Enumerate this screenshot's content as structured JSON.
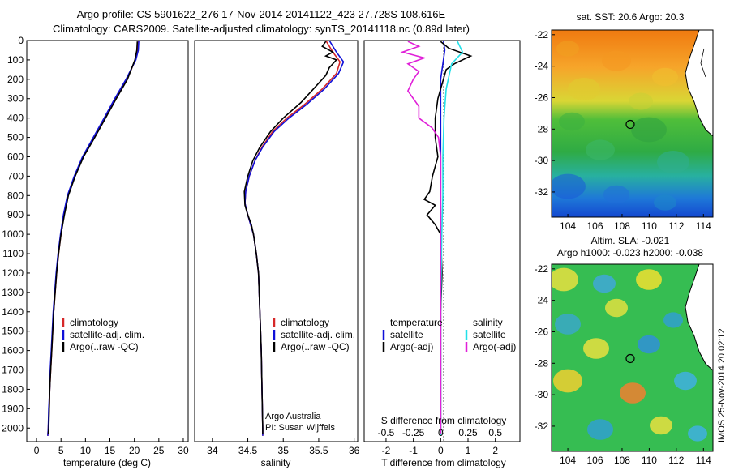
{
  "header": {
    "line1": "Argo profile: CS 5901622_276 17-Nov-2014 20141122_423 27.728S 108.616E",
    "line2": "Climatology: CARS2009. Satellite-adjusted climatology: synTS_20141118.nc (0.89d later)"
  },
  "colors": {
    "climatology": "#d62728",
    "satellite": "#1010d8",
    "argo": "#000000",
    "salinity_satellite": "#22e0e8",
    "salinity_argo": "#e020d8"
  },
  "chart_data": [
    {
      "type": "line",
      "xlabel": "temperature (deg C)",
      "ylabel": "",
      "xlim": [
        -2,
        31
      ],
      "ylim": [
        2070,
        0
      ],
      "xticks": [
        0,
        5,
        10,
        15,
        20,
        25,
        30
      ],
      "yticks": [
        0,
        100,
        200,
        300,
        400,
        500,
        600,
        700,
        800,
        900,
        1000,
        1100,
        1200,
        1300,
        1400,
        1500,
        1600,
        1700,
        1800,
        1900,
        2000
      ],
      "legend": [
        "climatology",
        "satellite-adj. clim.",
        "Argo(..raw -QC)"
      ],
      "legend_position": "lower-middle",
      "series": [
        {
          "name": "climatology",
          "points": [
            [
              20.8,
              0
            ],
            [
              20.7,
              50
            ],
            [
              20.2,
              100
            ],
            [
              18.5,
              200
            ],
            [
              16.2,
              300
            ],
            [
              14.0,
              400
            ],
            [
              11.8,
              500
            ],
            [
              9.5,
              600
            ],
            [
              7.8,
              700
            ],
            [
              6.4,
              800
            ],
            [
              5.6,
              900
            ],
            [
              5.0,
              1000
            ],
            [
              4.5,
              1100
            ],
            [
              4.1,
              1200
            ],
            [
              3.8,
              1300
            ],
            [
              3.5,
              1400
            ],
            [
              3.3,
              1500
            ],
            [
              3.1,
              1600
            ],
            [
              2.9,
              1700
            ],
            [
              2.7,
              1800
            ],
            [
              2.6,
              1900
            ],
            [
              2.4,
              2000
            ],
            [
              2.3,
              2040
            ]
          ]
        },
        {
          "name": "satellite-adj. clim.",
          "points": [
            [
              20.9,
              0
            ],
            [
              20.8,
              50
            ],
            [
              20.3,
              100
            ],
            [
              18.3,
              200
            ],
            [
              16.0,
              300
            ],
            [
              13.8,
              400
            ],
            [
              11.6,
              500
            ],
            [
              9.4,
              600
            ],
            [
              7.7,
              700
            ],
            [
              6.3,
              800
            ],
            [
              5.5,
              900
            ],
            [
              4.9,
              1000
            ],
            [
              4.4,
              1100
            ],
            [
              4.0,
              1200
            ],
            [
              3.7,
              1300
            ],
            [
              3.4,
              1400
            ],
            [
              3.2,
              1500
            ],
            [
              3.0,
              1600
            ],
            [
              2.8,
              1700
            ],
            [
              2.7,
              1800
            ],
            [
              2.5,
              1900
            ],
            [
              2.4,
              2000
            ],
            [
              2.3,
              2040
            ]
          ]
        },
        {
          "name": "Argo(..raw -QC)",
          "points": [
            [
              20.6,
              5
            ],
            [
              20.5,
              50
            ],
            [
              20.1,
              100
            ],
            [
              18.6,
              200
            ],
            [
              16.3,
              300
            ],
            [
              14.1,
              400
            ],
            [
              11.9,
              500
            ],
            [
              9.6,
              600
            ],
            [
              7.9,
              700
            ],
            [
              6.5,
              800
            ],
            [
              5.7,
              900
            ],
            [
              5.0,
              1000
            ],
            [
              4.5,
              1100
            ],
            [
              4.1,
              1200
            ],
            [
              3.8,
              1300
            ],
            [
              3.5,
              1400
            ],
            [
              3.3,
              1500
            ],
            [
              3.1,
              1600
            ],
            [
              2.9,
              1700
            ],
            [
              2.7,
              1800
            ],
            [
              2.6,
              1900
            ],
            [
              2.5,
              2000
            ],
            [
              2.4,
              2030
            ]
          ]
        }
      ]
    },
    {
      "type": "line",
      "xlabel": "salinity",
      "ylabel": "",
      "xlim": [
        33.75,
        36.05
      ],
      "ylim": [
        2070,
        0
      ],
      "xticks": [
        34,
        34.5,
        35,
        35.5,
        36
      ],
      "legend": [
        "climatology",
        "satellite-adj. clim.",
        "Argo(..raw -QC)"
      ],
      "legend_position": "lower-right",
      "annotation": [
        "Argo Australia",
        "PI: Susan Wijffels"
      ],
      "series": [
        {
          "name": "climatology",
          "points": [
            [
              35.6,
              0
            ],
            [
              35.7,
              60
            ],
            [
              35.8,
              110
            ],
            [
              35.75,
              170
            ],
            [
              35.55,
              250
            ],
            [
              35.3,
              330
            ],
            [
              35.05,
              400
            ],
            [
              34.85,
              470
            ],
            [
              34.7,
              550
            ],
            [
              34.6,
              620
            ],
            [
              34.52,
              700
            ],
            [
              34.47,
              780
            ],
            [
              34.46,
              840
            ],
            [
              34.5,
              900
            ],
            [
              34.54,
              950
            ],
            [
              34.58,
              1000
            ],
            [
              34.62,
              1100
            ],
            [
              34.65,
              1200
            ],
            [
              34.67,
              1400
            ],
            [
              34.69,
              1600
            ],
            [
              34.7,
              1800
            ],
            [
              34.71,
              2000
            ],
            [
              34.71,
              2040
            ]
          ]
        },
        {
          "name": "satellite-adj. clim.",
          "points": [
            [
              35.65,
              0
            ],
            [
              35.75,
              60
            ],
            [
              35.85,
              110
            ],
            [
              35.78,
              170
            ],
            [
              35.58,
              250
            ],
            [
              35.33,
              330
            ],
            [
              35.08,
              400
            ],
            [
              34.87,
              470
            ],
            [
              34.71,
              550
            ],
            [
              34.6,
              620
            ],
            [
              34.52,
              700
            ],
            [
              34.47,
              780
            ],
            [
              34.46,
              840
            ],
            [
              34.5,
              900
            ],
            [
              34.54,
              950
            ],
            [
              34.58,
              1000
            ],
            [
              34.62,
              1100
            ],
            [
              34.65,
              1200
            ],
            [
              34.67,
              1400
            ],
            [
              34.69,
              1600
            ],
            [
              34.7,
              1800
            ],
            [
              34.71,
              2000
            ],
            [
              34.71,
              2040
            ]
          ]
        },
        {
          "name": "Argo(..raw -QC)",
          "points": [
            [
              35.6,
              5
            ],
            [
              35.55,
              30
            ],
            [
              35.7,
              60
            ],
            [
              35.6,
              80
            ],
            [
              35.75,
              100
            ],
            [
              35.65,
              140
            ],
            [
              35.6,
              180
            ],
            [
              35.45,
              240
            ],
            [
              35.25,
              320
            ],
            [
              35.0,
              400
            ],
            [
              34.82,
              470
            ],
            [
              34.67,
              550
            ],
            [
              34.57,
              620
            ],
            [
              34.5,
              700
            ],
            [
              34.45,
              780
            ],
            [
              34.46,
              850
            ],
            [
              34.5,
              900
            ],
            [
              34.55,
              950
            ],
            [
              34.58,
              1000
            ],
            [
              34.62,
              1100
            ],
            [
              34.65,
              1200
            ],
            [
              34.67,
              1400
            ],
            [
              34.69,
              1600
            ],
            [
              34.7,
              1800
            ],
            [
              34.71,
              2000
            ],
            [
              34.71,
              2030
            ]
          ]
        }
      ]
    },
    {
      "type": "line",
      "xlabel": "T difference from climatology",
      "top_label": "S difference from climatology",
      "ylabel": "",
      "xlim": [
        -2.8,
        2.9
      ],
      "ylim": [
        2070,
        0
      ],
      "xticks": [
        -2,
        -1,
        0,
        1,
        2
      ],
      "top_xticks": [
        "-0.5",
        "-0.25",
        "0",
        "0.25",
        "0.5"
      ],
      "legend_left": [
        "temperature",
        "satellite",
        "Argo(-adj)"
      ],
      "legend_right": [
        "salinity",
        "satellite",
        "Argo(-adj)"
      ],
      "series": [
        {
          "name": "temperature satellite",
          "points": [
            [
              0.1,
              0
            ],
            [
              0.15,
              50
            ],
            [
              0.1,
              100
            ],
            [
              0.0,
              200
            ],
            [
              0.0,
              400
            ],
            [
              0.0,
              600
            ],
            [
              0.0,
              800
            ],
            [
              0.0,
              1000
            ],
            [
              0.0,
              1400
            ],
            [
              0.0,
              2040
            ]
          ]
        },
        {
          "name": "temperature Argo(-adj)",
          "points": [
            [
              0.0,
              5
            ],
            [
              0.3,
              40
            ],
            [
              1.1,
              80
            ],
            [
              0.5,
              120
            ],
            [
              0.2,
              150
            ],
            [
              0.1,
              200
            ],
            [
              -0.1,
              300
            ],
            [
              -0.2,
              400
            ],
            [
              -0.2,
              500
            ],
            [
              -0.1,
              600
            ],
            [
              -0.3,
              700
            ],
            [
              -0.4,
              780
            ],
            [
              -0.6,
              820
            ],
            [
              -0.2,
              850
            ],
            [
              -0.5,
              900
            ],
            [
              -0.2,
              950
            ],
            [
              0.0,
              1000
            ],
            [
              0.05,
              1200
            ],
            [
              0.0,
              1400
            ],
            [
              0.0,
              2030
            ]
          ]
        },
        {
          "name": "salinity satellite",
          "points": [
            [
              0.15,
              0
            ],
            [
              0.2,
              60
            ],
            [
              0.1,
              120
            ],
            [
              0.05,
              250
            ],
            [
              0.03,
              400
            ],
            [
              0.02,
              600
            ],
            [
              0.02,
              800
            ],
            [
              0.01,
              1000
            ],
            [
              0.0,
              1400
            ],
            [
              0.0,
              2040
            ]
          ]
        },
        {
          "name": "salinity Argo(-adj)",
          "points": [
            [
              -0.3,
              5
            ],
            [
              -0.2,
              30
            ],
            [
              -0.35,
              60
            ],
            [
              -0.15,
              90
            ],
            [
              -0.3,
              120
            ],
            [
              -0.2,
              160
            ],
            [
              -0.25,
              200
            ],
            [
              -0.3,
              260
            ],
            [
              -0.2,
              340
            ],
            [
              -0.2,
              400
            ],
            [
              -0.08,
              450
            ],
            [
              -0.02,
              500
            ],
            [
              0.0,
              600
            ],
            [
              0.0,
              800
            ],
            [
              0.0,
              1000
            ],
            [
              0.0,
              2030
            ]
          ]
        }
      ]
    },
    {
      "type": "heatmap",
      "title": "sat. SST: 20.6  Argo: 20.3",
      "xticks": [
        104,
        106,
        108,
        110,
        112,
        114
      ],
      "yticks": [
        -22,
        -24,
        -26,
        -28,
        -30,
        -32
      ],
      "xlim": [
        102.8,
        114.7
      ],
      "ylim": [
        -33.6,
        -21.7
      ],
      "marker": [
        108.6,
        -27.7
      ]
    },
    {
      "type": "heatmap",
      "title": "Altim. SLA: -0.021",
      "subtitle": "Argo h1000: -0.023  h2000: -0.038",
      "xticks": [
        104,
        106,
        108,
        110,
        112,
        114
      ],
      "yticks": [
        -22,
        -24,
        -26,
        -28,
        -30,
        -32
      ],
      "xlim": [
        102.8,
        114.7
      ],
      "ylim": [
        -33.6,
        -21.7
      ],
      "marker": [
        108.6,
        -27.7
      ]
    }
  ],
  "footer_stamp": "IMOS 25-Nov-2014 20:02:12"
}
